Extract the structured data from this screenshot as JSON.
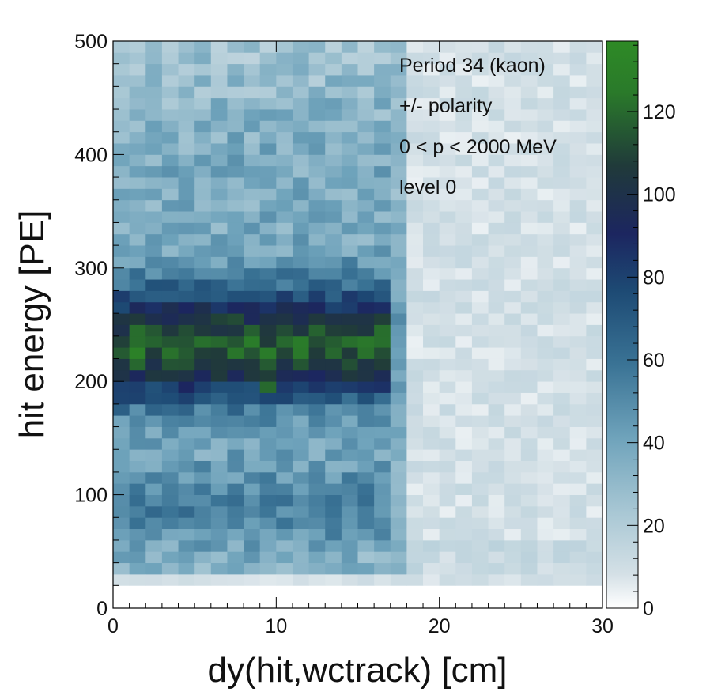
{
  "chart_data": {
    "type": "heatmap",
    "xlabel": "dy(hit,wctrack) [cm]",
    "ylabel": "hit energy [PE]",
    "xlim": [
      0,
      30
    ],
    "ylim": [
      0,
      500
    ],
    "x_ticks": [
      "0",
      "10",
      "20",
      "30"
    ],
    "y_ticks": [
      "0",
      "100",
      "200",
      "300",
      "400",
      "500"
    ],
    "z_range": [
      0,
      137
    ],
    "z_ticks": [
      "0",
      "20",
      "40",
      "60",
      "80",
      "100",
      "120"
    ],
    "bins": {
      "nx": 30,
      "ny": 50,
      "x_bin_width": 1,
      "y_bin_width": 10
    },
    "annotations": [
      "Period 34 (kaon)",
      "+/- polarity",
      "0 < p < 2000 MeV",
      "level 0"
    ],
    "colormap": [
      "#ffffff",
      "#d4e0e6",
      "#a8c7d4",
      "#6fa3bb",
      "#3a7395",
      "#1d4a74",
      "#1c2660",
      "#203a3a",
      "#2a7a2a",
      "#2e8a26"
    ],
    "grid": false,
    "legend_position": "right colorbar",
    "notable_cells": [
      {
        "x": 1.5,
        "y": 225,
        "z": 130
      },
      {
        "x": 9.5,
        "y": 195,
        "z": 120
      }
    ]
  }
}
